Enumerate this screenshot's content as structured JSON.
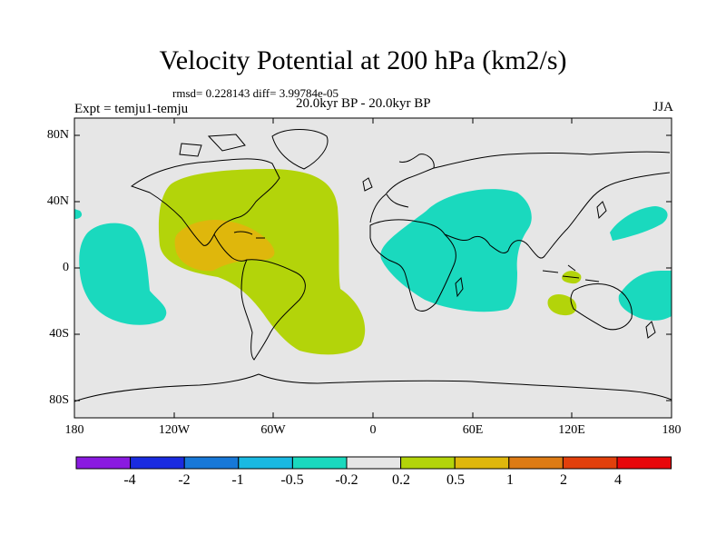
{
  "title": "Velocity Potential at 200 hPa (km2/s)",
  "stats": "rmsd= 0.228143 diff= 3.99784e-05",
  "experiment": "Expt = temju1-temju",
  "period": "20.0kyr BP - 20.0kyr BP",
  "season": "JJA",
  "lat_labels": [
    "80N",
    "40N",
    "0",
    "40S",
    "80S"
  ],
  "lon_labels": [
    "180",
    "120W",
    "60W",
    "0",
    "60E",
    "120E",
    "180"
  ],
  "colorbar": {
    "labels": [
      "-4",
      "-2",
      "-1",
      "-0.5",
      "-0.2",
      "0.2",
      "0.5",
      "1",
      "2",
      "4"
    ],
    "colors": [
      "#8a1ae0",
      "#1a2be0",
      "#1778d8",
      "#19b9e2",
      "#1ad9be",
      "#e6e6e6",
      "#b3d40a",
      "#dfb70c",
      "#dd7b14",
      "#e2400c",
      "#e8070a"
    ]
  },
  "colors": {
    "land_background": "#e6e6e6",
    "positive_weak": "#b3d40a",
    "positive_mid": "#dfb70c",
    "negative_weak": "#1ad9be"
  }
}
